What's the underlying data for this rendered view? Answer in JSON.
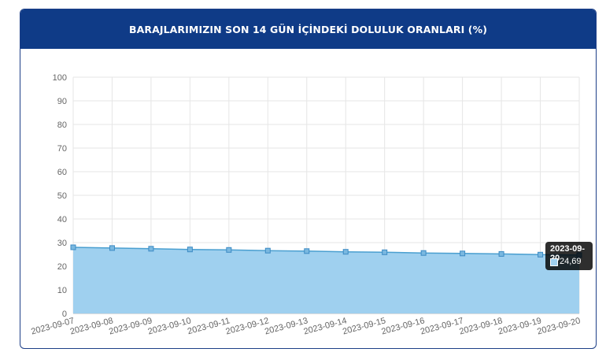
{
  "header": {
    "title": "BARAJLARIMIZIN SON 14 GÜN İÇİNDEKİ DOLULUK ORANLARI (%)"
  },
  "tooltip": {
    "date": "2023-09-20",
    "value": "24,69"
  },
  "colors": {
    "header_bg": "#0f3b87",
    "area_fill": "#9fd0ef",
    "line": "#4a9fd0",
    "point": "#3d8bc4"
  },
  "chart_data": {
    "type": "area",
    "title": "BARAJLARIMIZIN SON 14 GÜN İÇİNDEKİ DOLULUK ORANLARI (%)",
    "xlabel": "",
    "ylabel": "",
    "ylim": [
      0,
      100
    ],
    "yticks": [
      0,
      10,
      20,
      30,
      40,
      50,
      60,
      70,
      80,
      90,
      100
    ],
    "grid": true,
    "categories": [
      "2023-09-07",
      "2023-09-08",
      "2023-09-09",
      "2023-09-10",
      "2023-09-11",
      "2023-09-12",
      "2023-09-13",
      "2023-09-14",
      "2023-09-15",
      "2023-09-16",
      "2023-09-17",
      "2023-09-18",
      "2023-09-19",
      "2023-09-20"
    ],
    "series": [
      {
        "values": [
          28.0,
          27.7,
          27.4,
          27.1,
          26.9,
          26.6,
          26.4,
          26.1,
          25.9,
          25.6,
          25.4,
          25.2,
          24.9,
          24.69
        ]
      }
    ]
  }
}
